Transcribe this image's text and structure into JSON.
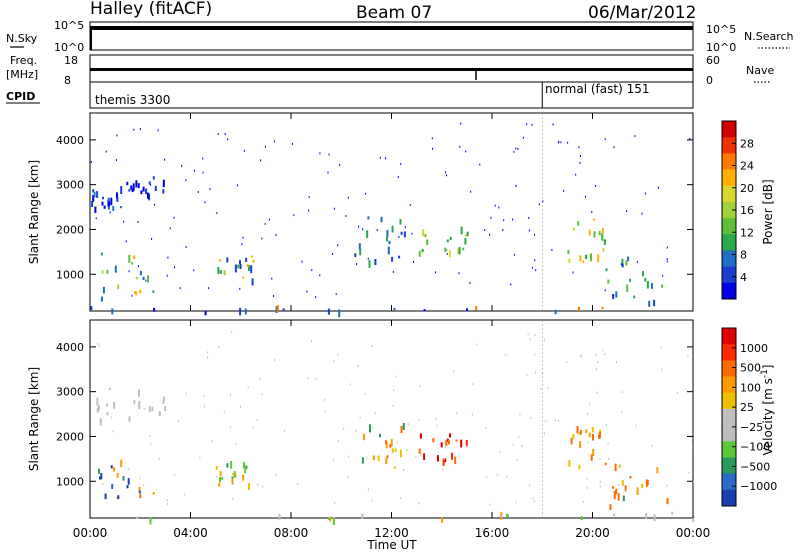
{
  "header": {
    "left_title": "Halley (fitACF)",
    "center_title": "Beam 07",
    "right_title": "06/Mar/2012"
  },
  "top_panels": {
    "nsky_label": "N.Sky",
    "nsearch_label": "N.Search",
    "nsky_ticks": [
      "10^5",
      "10^0"
    ],
    "nsearch_ticks": [
      "10^5",
      "10^0"
    ],
    "freq_label_1": "Freq.",
    "freq_label_2": "[MHz]",
    "freq_ticks": [
      "18",
      "8"
    ],
    "nave_label": "Nave",
    "nave_ticks": [
      "60",
      "0"
    ],
    "cpid_label": "CPID",
    "cpid_left": "themis 3300",
    "cpid_right": "normal (fast) 151",
    "cpid_switch_hour": 18.0
  },
  "chart_data": [
    {
      "type": "heatmap",
      "id": "power",
      "ylabel": "Slant Range [km]",
      "xlabel": "",
      "yticks": [
        1000,
        2000,
        3000,
        4000
      ],
      "ylim": [
        180,
        4600
      ],
      "xlim_hours": [
        0,
        24
      ],
      "colorbar_label": "Power [dB]",
      "colorbar_ticks": [
        "28",
        "24",
        "20",
        "16",
        "12",
        "8",
        "4"
      ],
      "colors": [
        "#0000e6",
        "#1a3fd0",
        "#1e6ec8",
        "#2aa84a",
        "#5fbf3a",
        "#9fd23a",
        "#d8d830",
        "#ffb000",
        "#ff7a00",
        "#f03000",
        "#d00000"
      ]
    },
    {
      "type": "heatmap",
      "id": "velocity",
      "ylabel": "Slant Range [km]",
      "xlabel": "Time UT",
      "xticks": [
        "00:00",
        "04:00",
        "08:00",
        "12:00",
        "16:00",
        "20:00",
        "00:00"
      ],
      "yticks": [
        1000,
        2000,
        3000,
        4000
      ],
      "ylim": [
        180,
        4600
      ],
      "xlim_hours": [
        0,
        24
      ],
      "colorbar_label": "Velocity [m s",
      "colorbar_superscript": "-1",
      "colorbar_ticks": [
        "1000",
        "500",
        "100",
        "25",
        "−25",
        "−100",
        "−500",
        "−1000"
      ],
      "colors": [
        "#1a3fb0",
        "#2a6cc8",
        "#2a9a5a",
        "#5cc83a",
        "#bdbdbd",
        "#c0c0c0",
        "#f0c000",
        "#ff9a00",
        "#ff6a00",
        "#ff2a00",
        "#e00000"
      ]
    }
  ]
}
